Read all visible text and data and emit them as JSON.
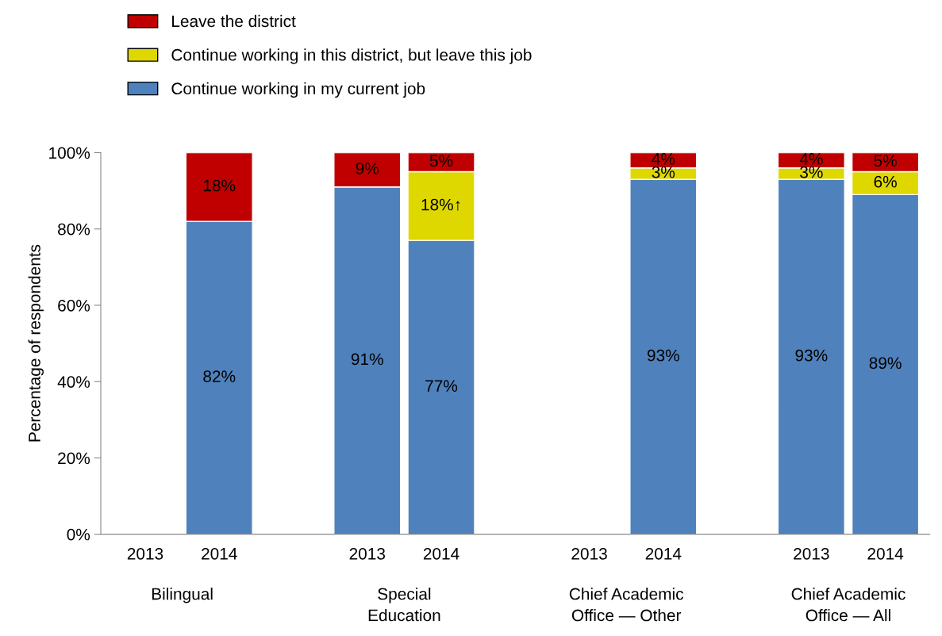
{
  "chart_data": {
    "type": "bar",
    "stacked": true,
    "ylabel": "Percentage of respondents",
    "categories": [
      "2013",
      "2014",
      null,
      "2013",
      "2014",
      null,
      "2013",
      "2014",
      null,
      "2013",
      "2014"
    ],
    "series": [
      {
        "name": "Continue working in my current job",
        "color": "#4f81bd",
        "values": [
          null,
          82,
          null,
          91,
          77,
          null,
          null,
          93,
          null,
          93,
          89
        ],
        "value_labels": [
          null,
          "82%",
          null,
          "91%",
          "77%",
          null,
          null,
          "93%",
          null,
          "93%",
          "89%"
        ]
      },
      {
        "name": "Continue working in this district, but leave this job",
        "color": "#dfd800",
        "values": [
          null,
          null,
          null,
          null,
          18,
          null,
          null,
          3,
          null,
          3,
          6
        ],
        "value_labels": [
          null,
          null,
          null,
          null,
          "18%↑",
          null,
          null,
          "3%",
          null,
          "3%",
          "6%"
        ]
      },
      {
        "name": "Leave the district",
        "color": "#c00000",
        "values": [
          null,
          18,
          null,
          9,
          5,
          null,
          null,
          4,
          null,
          4,
          5
        ],
        "value_labels": [
          null,
          "18%",
          null,
          "9%",
          "5%",
          null,
          null,
          "4%",
          null,
          "4%",
          "5%"
        ]
      }
    ],
    "annotations": [
      "Bilingual",
      "Special\nEducation",
      "Chief Academic\nOffice — Other",
      "Chief Academic\nOffice — All"
    ],
    "ylim": [
      0,
      100
    ],
    "yticks": [
      {
        "value": 0,
        "label": "0%"
      },
      {
        "value": 20,
        "label": "20%"
      },
      {
        "value": 40,
        "label": "40%"
      },
      {
        "value": 60,
        "label": "60%"
      },
      {
        "value": 80,
        "label": "80%"
      },
      {
        "value": 100,
        "label": "100%"
      }
    ],
    "grid": false,
    "legend": "top left"
  }
}
